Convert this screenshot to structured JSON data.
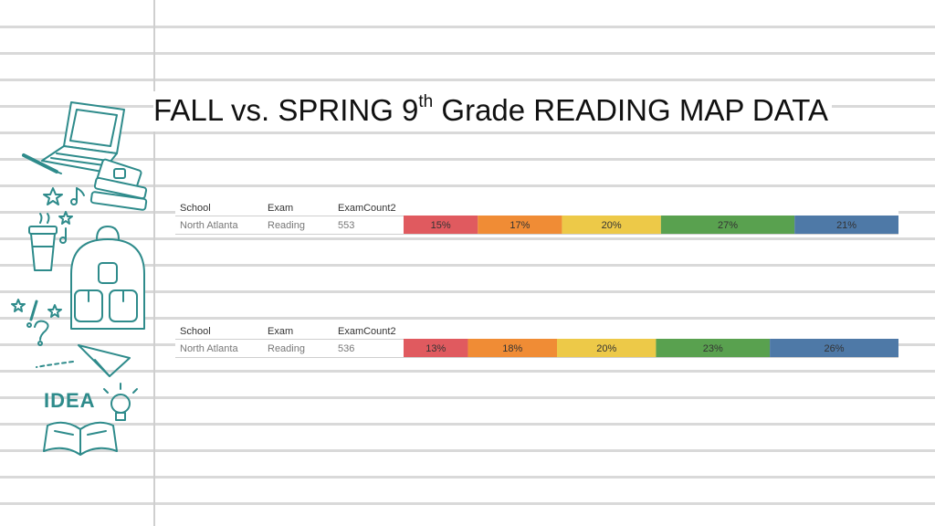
{
  "title": {
    "prefix": "FALL vs. SPRING 9",
    "superscript": "th",
    "suffix": " Grade READING MAP DATA"
  },
  "doodle_text": "IDEA",
  "icons": [
    "laptop-icon",
    "pen-icon",
    "book-stack-icon",
    "star-icon",
    "music-note-icon",
    "coffee-cup-icon",
    "backpack-icon",
    "exclamation-icon",
    "question-mark-icon",
    "paper-plane-icon",
    "light-bulb-icon",
    "open-book-icon"
  ],
  "colors": {
    "accent_doodle": "#2e8b8b",
    "segments": [
      "#e05a5f",
      "#f08c35",
      "#edc948",
      "#59a14f",
      "#4e79a7"
    ]
  },
  "chart_data": [
    {
      "type": "bar",
      "orientation": "horizontal-stacked-100",
      "columns": [
        "School",
        "Exam",
        "ExamCount2"
      ],
      "rows": [
        {
          "School": "North Atlanta",
          "Exam": "Reading",
          "ExamCount2": "553"
        }
      ],
      "values": [
        15,
        17,
        20,
        27,
        21
      ],
      "labels": [
        "15%",
        "17%",
        "20%",
        "27%",
        "21%"
      ],
      "colors": [
        "#e05a5f",
        "#f08c35",
        "#edc948",
        "#59a14f",
        "#4e79a7"
      ]
    },
    {
      "type": "bar",
      "orientation": "horizontal-stacked-100",
      "columns": [
        "School",
        "Exam",
        "ExamCount2"
      ],
      "rows": [
        {
          "School": "North Atlanta",
          "Exam": "Reading",
          "ExamCount2": "536"
        }
      ],
      "values": [
        13,
        18,
        20,
        23,
        26
      ],
      "labels": [
        "13%",
        "18%",
        "20%",
        "23%",
        "26%"
      ],
      "colors": [
        "#e05a5f",
        "#f08c35",
        "#edc948",
        "#59a14f",
        "#4e79a7"
      ]
    }
  ]
}
